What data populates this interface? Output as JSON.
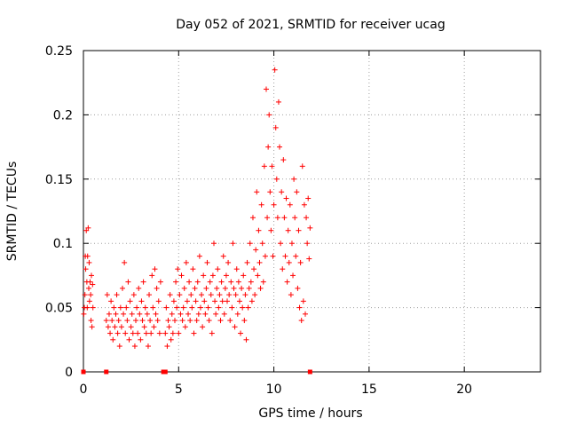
{
  "chart_data": {
    "type": "scatter",
    "title": "Day 052 of 2021, SRMTID for receiver ucag",
    "xlabel": "GPS time / hours",
    "ylabel": "SRMTID / TECUs",
    "xlim": [
      0,
      24
    ],
    "ylim": [
      0,
      0.25
    ],
    "xticks": [
      0,
      5,
      10,
      15,
      20
    ],
    "xtick_labels": [
      "0",
      "5",
      "10",
      "15",
      "20"
    ],
    "yticks": [
      0,
      0.05,
      0.1,
      0.15,
      0.2,
      0.25
    ],
    "ytick_labels": [
      "0",
      "0.05",
      "0.1",
      "0.15",
      "0.2",
      "0.25"
    ],
    "grid": true,
    "marker": "+",
    "color": "#ff0000",
    "series": [
      {
        "name": "SRMTID",
        "points": [
          [
            0.02,
            0.045
          ],
          [
            0.05,
            0.05
          ],
          [
            0.08,
            0.06
          ],
          [
            0.1,
            0.09
          ],
          [
            0.12,
            0.08
          ],
          [
            0.15,
            0.11
          ],
          [
            0.18,
            0.07
          ],
          [
            0.2,
            0.05
          ],
          [
            0.22,
            0.09
          ],
          [
            0.25,
            0.112
          ],
          [
            0.28,
            0.065
          ],
          [
            0.3,
            0.085
          ],
          [
            0.32,
            0.055
          ],
          [
            0.35,
            0.07
          ],
          [
            0.38,
            0.06
          ],
          [
            0.4,
            0.04
          ],
          [
            0.42,
            0.075
          ],
          [
            0.45,
            0.035
          ],
          [
            0.48,
            0.068
          ],
          [
            0.5,
            0.05
          ],
          [
            1.2,
            0.04
          ],
          [
            1.25,
            0.06
          ],
          [
            1.3,
            0.035
          ],
          [
            1.35,
            0.045
          ],
          [
            1.4,
            0.03
          ],
          [
            1.45,
            0.055
          ],
          [
            1.5,
            0.04
          ],
          [
            1.55,
            0.025
          ],
          [
            1.6,
            0.05
          ],
          [
            1.65,
            0.035
          ],
          [
            1.7,
            0.045
          ],
          [
            1.75,
            0.06
          ],
          [
            1.8,
            0.03
          ],
          [
            1.85,
            0.04
          ],
          [
            1.9,
            0.02
          ],
          [
            1.95,
            0.05
          ],
          [
            2.0,
            0.035
          ],
          [
            2.05,
            0.065
          ],
          [
            2.1,
            0.045
          ],
          [
            2.15,
            0.085
          ],
          [
            2.2,
            0.03
          ],
          [
            2.25,
            0.05
          ],
          [
            2.3,
            0.04
          ],
          [
            2.35,
            0.07
          ],
          [
            2.4,
            0.025
          ],
          [
            2.45,
            0.055
          ],
          [
            2.5,
            0.035
          ],
          [
            2.55,
            0.045
          ],
          [
            2.6,
            0.03
          ],
          [
            2.65,
            0.06
          ],
          [
            2.7,
            0.02
          ],
          [
            2.75,
            0.04
          ],
          [
            2.8,
            0.05
          ],
          [
            2.85,
            0.03
          ],
          [
            2.9,
            0.065
          ],
          [
            2.95,
            0.045
          ],
          [
            3.0,
            0.025
          ],
          [
            3.05,
            0.055
          ],
          [
            3.1,
            0.04
          ],
          [
            3.15,
            0.07
          ],
          [
            3.2,
            0.035
          ],
          [
            3.25,
            0.05
          ],
          [
            3.3,
            0.03
          ],
          [
            3.35,
            0.045
          ],
          [
            3.4,
            0.02
          ],
          [
            3.45,
            0.06
          ],
          [
            3.5,
            0.04
          ],
          [
            3.55,
            0.03
          ],
          [
            3.6,
            0.075
          ],
          [
            3.65,
            0.05
          ],
          [
            3.7,
            0.035
          ],
          [
            3.75,
            0.08
          ],
          [
            3.8,
            0.045
          ],
          [
            3.85,
            0.065
          ],
          [
            3.9,
            0.04
          ],
          [
            3.95,
            0.055
          ],
          [
            4.0,
            0.03
          ],
          [
            4.05,
            0.07
          ],
          [
            4.3,
            0.03
          ],
          [
            4.35,
            0.05
          ],
          [
            4.4,
            0.02
          ],
          [
            4.45,
            0.04
          ],
          [
            4.5,
            0.035
          ],
          [
            4.55,
            0.06
          ],
          [
            4.6,
            0.025
          ],
          [
            4.65,
            0.045
          ],
          [
            4.7,
            0.03
          ],
          [
            4.75,
            0.055
          ],
          [
            4.8,
            0.04
          ],
          [
            4.85,
            0.07
          ],
          [
            4.9,
            0.05
          ],
          [
            4.95,
            0.08
          ],
          [
            5.0,
            0.03
          ],
          [
            5.05,
            0.06
          ],
          [
            5.1,
            0.045
          ],
          [
            5.15,
            0.075
          ],
          [
            5.2,
            0.04
          ],
          [
            5.25,
            0.05
          ],
          [
            5.3,
            0.065
          ],
          [
            5.35,
            0.035
          ],
          [
            5.4,
            0.085
          ],
          [
            5.45,
            0.055
          ],
          [
            5.5,
            0.045
          ],
          [
            5.55,
            0.07
          ],
          [
            5.6,
            0.04
          ],
          [
            5.65,
            0.06
          ],
          [
            5.7,
            0.05
          ],
          [
            5.75,
            0.08
          ],
          [
            5.8,
            0.03
          ],
          [
            5.85,
            0.065
          ],
          [
            5.9,
            0.055
          ],
          [
            5.95,
            0.04
          ],
          [
            6.0,
            0.07
          ],
          [
            6.05,
            0.045
          ],
          [
            6.1,
            0.09
          ],
          [
            6.15,
            0.05
          ],
          [
            6.2,
            0.06
          ],
          [
            6.25,
            0.035
          ],
          [
            6.3,
            0.075
          ],
          [
            6.35,
            0.055
          ],
          [
            6.4,
            0.045
          ],
          [
            6.45,
            0.065
          ],
          [
            6.5,
            0.085
          ],
          [
            6.55,
            0.05
          ],
          [
            6.6,
            0.04
          ],
          [
            6.65,
            0.07
          ],
          [
            6.7,
            0.06
          ],
          [
            6.75,
            0.03
          ],
          [
            6.8,
            0.075
          ],
          [
            6.85,
            0.1
          ],
          [
            6.9,
            0.055
          ],
          [
            6.95,
            0.045
          ],
          [
            7.0,
            0.065
          ],
          [
            7.05,
            0.08
          ],
          [
            7.1,
            0.05
          ],
          [
            7.15,
            0.06
          ],
          [
            7.2,
            0.04
          ],
          [
            7.25,
            0.07
          ],
          [
            7.3,
            0.055
          ],
          [
            7.35,
            0.09
          ],
          [
            7.4,
            0.045
          ],
          [
            7.45,
            0.065
          ],
          [
            7.5,
            0.075
          ],
          [
            7.55,
            0.055
          ],
          [
            7.6,
            0.085
          ],
          [
            7.65,
            0.06
          ],
          [
            7.7,
            0.04
          ],
          [
            7.75,
            0.07
          ],
          [
            7.8,
            0.05
          ],
          [
            7.85,
            0.1
          ],
          [
            7.9,
            0.065
          ],
          [
            7.95,
            0.035
          ],
          [
            8.0,
            0.06
          ],
          [
            8.05,
            0.08
          ],
          [
            8.1,
            0.045
          ],
          [
            8.15,
            0.07
          ],
          [
            8.2,
            0.055
          ],
          [
            8.25,
            0.03
          ],
          [
            8.3,
            0.065
          ],
          [
            8.35,
            0.05
          ],
          [
            8.4,
            0.075
          ],
          [
            8.45,
            0.04
          ],
          [
            8.5,
            0.06
          ],
          [
            8.55,
            0.025
          ],
          [
            8.6,
            0.085
          ],
          [
            8.65,
            0.05
          ],
          [
            8.7,
            0.065
          ],
          [
            8.75,
            0.1
          ],
          [
            8.8,
            0.07
          ],
          [
            8.85,
            0.055
          ],
          [
            8.9,
            0.12
          ],
          [
            8.95,
            0.08
          ],
          [
            9.0,
            0.06
          ],
          [
            9.05,
            0.095
          ],
          [
            9.1,
            0.14
          ],
          [
            9.15,
            0.075
          ],
          [
            9.2,
            0.11
          ],
          [
            9.25,
            0.085
          ],
          [
            9.3,
            0.065
          ],
          [
            9.35,
            0.13
          ],
          [
            9.4,
            0.1
          ],
          [
            9.45,
            0.07
          ],
          [
            9.5,
            0.16
          ],
          [
            9.55,
            0.09
          ],
          [
            9.6,
            0.22
          ],
          [
            9.65,
            0.12
          ],
          [
            9.7,
            0.175
          ],
          [
            9.75,
            0.2
          ],
          [
            9.8,
            0.14
          ],
          [
            9.85,
            0.11
          ],
          [
            9.9,
            0.16
          ],
          [
            9.95,
            0.09
          ],
          [
            10.0,
            0.13
          ],
          [
            10.05,
            0.235
          ],
          [
            10.1,
            0.19
          ],
          [
            10.15,
            0.15
          ],
          [
            10.2,
            0.12
          ],
          [
            10.25,
            0.21
          ],
          [
            10.3,
            0.175
          ],
          [
            10.35,
            0.1
          ],
          [
            10.4,
            0.14
          ],
          [
            10.45,
            0.08
          ],
          [
            10.5,
            0.165
          ],
          [
            10.55,
            0.12
          ],
          [
            10.6,
            0.09
          ],
          [
            10.65,
            0.135
          ],
          [
            10.7,
            0.07
          ],
          [
            10.75,
            0.11
          ],
          [
            10.8,
            0.085
          ],
          [
            10.85,
            0.13
          ],
          [
            10.9,
            0.06
          ],
          [
            10.95,
            0.1
          ],
          [
            11.0,
            0.075
          ],
          [
            11.05,
            0.15
          ],
          [
            11.1,
            0.12
          ],
          [
            11.15,
            0.09
          ],
          [
            11.2,
            0.14
          ],
          [
            11.25,
            0.065
          ],
          [
            11.3,
            0.11
          ],
          [
            11.35,
            0.05
          ],
          [
            11.4,
            0.085
          ],
          [
            11.45,
            0.04
          ],
          [
            11.5,
            0.16
          ],
          [
            11.55,
            0.055
          ],
          [
            11.6,
            0.13
          ],
          [
            11.65,
            0.045
          ],
          [
            11.7,
            0.12
          ],
          [
            11.75,
            0.1
          ],
          [
            11.8,
            0.135
          ],
          [
            11.85,
            0.088
          ],
          [
            11.9,
            0.112
          ]
        ]
      }
    ],
    "zero_markers_x": [
      0,
      1.2,
      4.2,
      4.3,
      11.9
    ]
  }
}
